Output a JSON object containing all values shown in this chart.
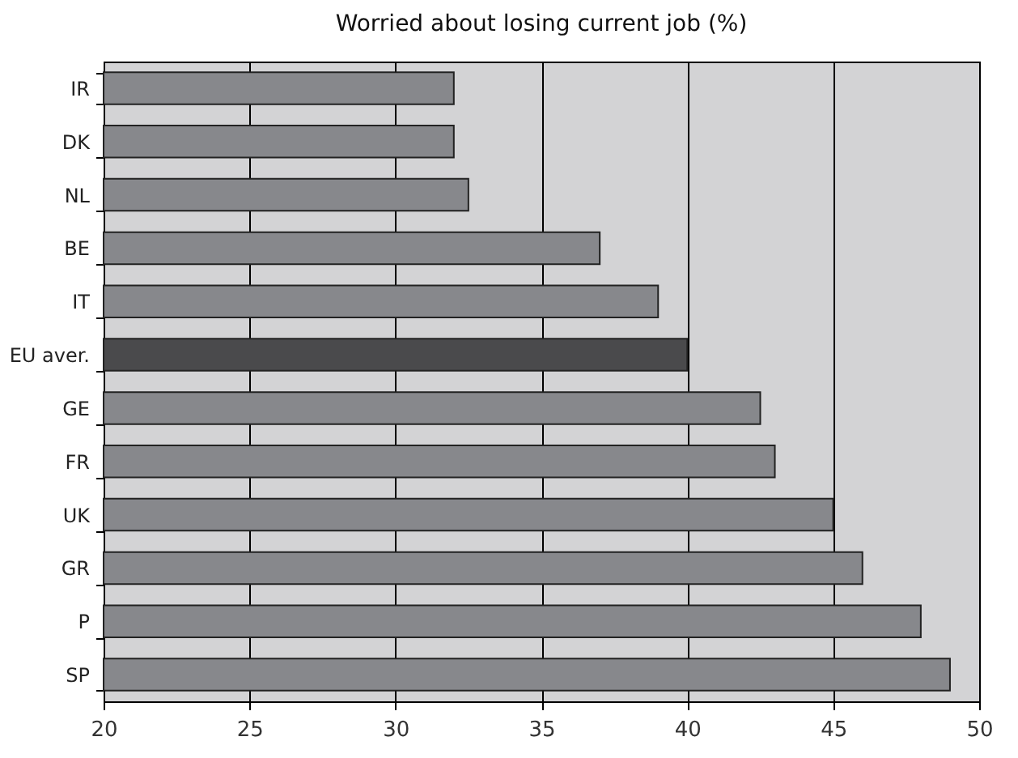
{
  "chart_data": {
    "type": "bar",
    "orientation": "horizontal",
    "title": "Worried about losing current job (%)",
    "categories": [
      "IR",
      "DK",
      "NL",
      "BE",
      "IT",
      "EU aver.",
      "GE",
      "FR",
      "UK",
      "GR",
      "P",
      "SP"
    ],
    "values": [
      32,
      32,
      32.5,
      37,
      39,
      40,
      42.5,
      43,
      45,
      46,
      48,
      49
    ],
    "colors": [
      "#87888c",
      "#87888c",
      "#87888c",
      "#87888c",
      "#87888c",
      "#4a4a4c",
      "#87888c",
      "#87888c",
      "#87888c",
      "#87888c",
      "#87888c",
      "#87888c"
    ],
    "xlim": [
      20,
      50
    ],
    "xticks": [
      20,
      25,
      30,
      35,
      40,
      45,
      50
    ],
    "grid": "x"
  }
}
